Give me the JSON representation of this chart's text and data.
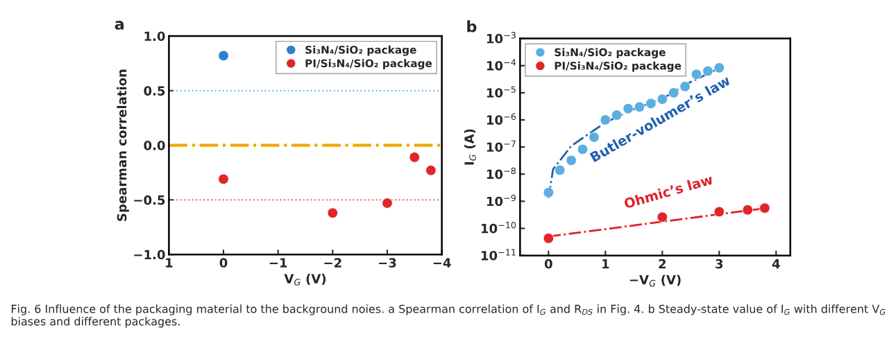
{
  "chart_data": [
    {
      "type": "scatter",
      "xlabel": "V$_{G}$ (V)",
      "ylabel": "Spearman correlation",
      "annotations": [
        "a",
        "Fig. 6 Influence of the packaging material to the background noies. a Spearman correlation of I$_{G}$ and R$_{DS}$ in Fig. 4. b Steady-state value of I$_{G}$ with different V$_{G}$ biases and different packages."
      ],
      "xlim": [
        1,
        -4
      ],
      "xticks": [
        1,
        0,
        {
          "value": -1,
          "label": "−1"
        },
        {
          "value": -2,
          "label": "−2"
        },
        {
          "value": -3,
          "label": "−3"
        },
        {
          "value": -4,
          "label": "−4"
        }
      ],
      "ylim": [
        -1,
        1
      ],
      "yticks": [
        {
          "value": -1,
          "label": "−1.0"
        },
        {
          "value": -0.5,
          "label": "−0.5"
        },
        {
          "value": 0,
          "label": "0.0"
        },
        0.5,
        {
          "value": 1.0,
          "label": "1.0"
        }
      ],
      "series": [
        {
          "name": "Si₃N₄/SiO₂ package",
          "color": "#2f80cc",
          "x": [
            0
          ],
          "values": [
            0.82
          ]
        },
        {
          "name": "PI/Si₃N₄/SiO₂ package",
          "color": "#e0262b",
          "x": [
            0,
            -2,
            -3,
            -3.5,
            -3.8
          ],
          "values": [
            -0.31,
            -0.62,
            -0.53,
            -0.11,
            -0.23
          ]
        }
      ],
      "ref_lines": [
        {
          "axis": "y",
          "value": 0.5,
          "color": "#5bbde8",
          "line_style": "dotted"
        },
        {
          "axis": "y",
          "value": 0,
          "color": "#f0a800",
          "line_style": "dashdot"
        },
        {
          "axis": "y",
          "value": -0.5,
          "color": "#f07070",
          "line_style": "dotted"
        }
      ],
      "legend": "top right",
      "marker": "circle",
      "grid": false
    },
    {
      "type": "scatter",
      "xlabel": "−V$_{G}$ (V)",
      "ylabel": "I$_{G}$ (A)",
      "annotations": [
        "b",
        "Butler-volumer’s law",
        "Ohmic’s law"
      ],
      "log": "y",
      "xlim": [
        -0.5,
        4.25
      ],
      "xticks": [
        0,
        1,
        2,
        3,
        4
      ],
      "ylim": [
        1e-11,
        0.001
      ],
      "yticks": [
        {
          "value": 1e-11,
          "label": "10$^{−11}$"
        },
        {
          "value": 1e-10,
          "label": "10$^{−10}$"
        },
        {
          "value": 1e-09,
          "label": "10$^{−9}$"
        },
        {
          "value": 1e-08,
          "label": "10$^{−8}$"
        },
        {
          "value": 1e-07,
          "label": "10$^{−7}$"
        },
        {
          "value": 1e-06,
          "label": "10$^{−6}$"
        },
        {
          "value": 1e-05,
          "label": "10$^{−5}$"
        },
        {
          "value": 0.0001,
          "label": "10$^{−4}$"
        },
        {
          "value": 0.001,
          "label": "10$^{−3}$"
        }
      ],
      "series": [
        {
          "name": "Si₃N₄/SiO₂ package",
          "color": "#5aaee0",
          "x": [
            0,
            0.2,
            0.4,
            0.6,
            0.8,
            1.0,
            1.2,
            1.4,
            1.6,
            1.8,
            2.0,
            2.2,
            2.4,
            2.6,
            2.8,
            3.0
          ],
          "values": [
            2.1e-09,
            1.4e-08,
            3.2e-08,
            8.2e-08,
            2.3e-07,
            1e-06,
            1.5e-06,
            2.6e-06,
            3e-06,
            4e-06,
            5.8e-06,
            1e-05,
            1.7e-05,
            4.8e-05,
            6.3e-05,
            8.3e-05
          ]
        },
        {
          "name": "PI/Si₃N₄/SiO₂ package",
          "color": "#e0262b",
          "x": [
            0,
            2,
            3,
            3.5,
            3.8
          ],
          "values": [
            4.3e-11,
            2.6e-10,
            4.1e-10,
            4.8e-10,
            5.6e-10
          ]
        },
        {
          "type": "line",
          "color": "#1f5fb0",
          "line_style": "dashdot",
          "marker": "none",
          "x": [
            0,
            0.08,
            0.4,
            1.0,
            1.5,
            2.0,
            2.5,
            3.0
          ],
          "values": [
            1.3e-09,
            1.5e-08,
            1.1e-07,
            8e-07,
            2.5e-06,
            6e-06,
            2.5e-05,
            8e-05
          ]
        },
        {
          "type": "line",
          "color": "#e0202a",
          "line_style": "dashdot",
          "marker": "none",
          "x": [
            0,
            3.8
          ],
          "values": [
            5e-11,
            5.5e-10
          ]
        }
      ],
      "legend": "top left",
      "marker": "circle",
      "grid": false
    }
  ]
}
